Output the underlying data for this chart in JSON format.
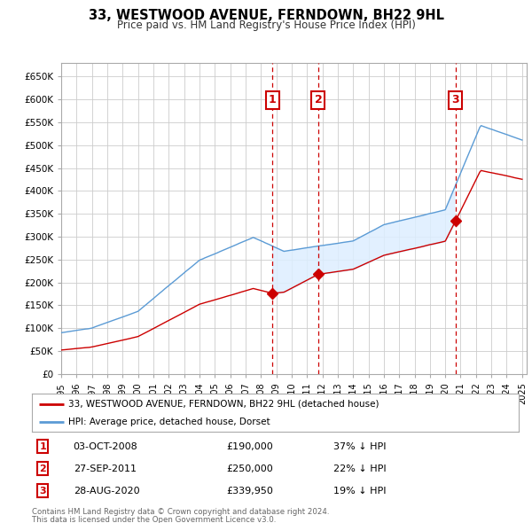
{
  "title": "33, WESTWOOD AVENUE, FERNDOWN, BH22 9HL",
  "subtitle": "Price paid vs. HM Land Registry's House Price Index (HPI)",
  "hpi_color": "#5b9bd5",
  "hpi_fill_color": "#ddeeff",
  "price_color": "#cc0000",
  "ylim": [
    0,
    680000
  ],
  "yticks": [
    0,
    50000,
    100000,
    150000,
    200000,
    250000,
    300000,
    350000,
    400000,
    450000,
    500000,
    550000,
    600000,
    650000
  ],
  "legend_label_price": "33, WESTWOOD AVENUE, FERNDOWN, BH22 9HL (detached house)",
  "legend_label_hpi": "HPI: Average price, detached house, Dorset",
  "sale_points": [
    {
      "date_label": "03-OCT-2008",
      "x": 2008.75,
      "price": 190000,
      "pct": "37%",
      "num": 1
    },
    {
      "date_label": "27-SEP-2011",
      "x": 2011.73,
      "price": 250000,
      "pct": "22%",
      "num": 2
    },
    {
      "date_label": "28-AUG-2020",
      "x": 2020.66,
      "price": 339950,
      "pct": "19%",
      "num": 3
    }
  ],
  "footnote1": "Contains HM Land Registry data © Crown copyright and database right 2024.",
  "footnote2": "This data is licensed under the Open Government Licence v3.0.",
  "background_color": "#ffffff",
  "grid_color": "#cccccc",
  "sale_box_color": "#cc0000",
  "xlim_start": 1995,
  "xlim_end": 2025.3
}
